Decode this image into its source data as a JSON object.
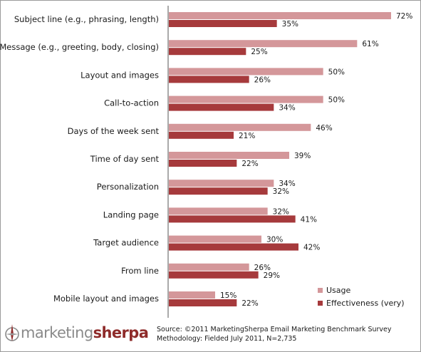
{
  "chart_data": {
    "type": "bar",
    "orientation": "horizontal",
    "categories": [
      "Subject line (e.g., phrasing, length)",
      "Message (e.g., greeting, body, closing)",
      "Layout and images",
      "Call-to-action",
      "Days of the week sent",
      "Time of day sent",
      "Personalization",
      "Landing page",
      "Target audience",
      "From line",
      "Mobile layout and images"
    ],
    "series": [
      {
        "name": "Usage",
        "color": "#d4979a",
        "values": [
          72,
          61,
          50,
          50,
          46,
          39,
          34,
          32,
          30,
          26,
          15
        ]
      },
      {
        "name": "Effectiveness (very)",
        "color": "#a63a3c",
        "values": [
          35,
          25,
          26,
          34,
          21,
          22,
          32,
          41,
          42,
          29,
          22
        ]
      }
    ],
    "value_suffix": "%",
    "xlim": [
      0,
      72
    ],
    "legend_position": "bottom-right",
    "grid": false
  },
  "source": {
    "line1": "Source: ©2011 MarketingSherpa Email Marketing Benchmark Survey",
    "line2": "Methodology: Fielded July 2011, N=2,735"
  },
  "logo": {
    "word1": "marketing",
    "word2": "sherpa",
    "icon": "compass-icon"
  }
}
